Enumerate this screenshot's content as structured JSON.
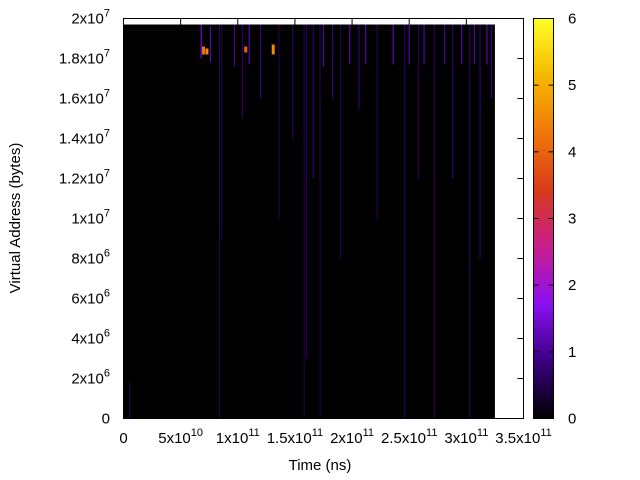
{
  "chart_data": {
    "type": "heatmap",
    "xlabel": "Time (ns)",
    "ylabel": "Virtual Address (bytes)",
    "xlim": [
      0,
      350000000000
    ],
    "ylim": [
      0,
      20000000
    ],
    "x_ticks": [
      {
        "value": 0,
        "base": "0",
        "exp": ""
      },
      {
        "value": 50000000000,
        "base": "5x10",
        "exp": "10"
      },
      {
        "value": 100000000000,
        "base": "1x10",
        "exp": "11"
      },
      {
        "value": 150000000000,
        "base": "1.5x10",
        "exp": "11"
      },
      {
        "value": 200000000000,
        "base": "2x10",
        "exp": "11"
      },
      {
        "value": 250000000000,
        "base": "2.5x10",
        "exp": "11"
      },
      {
        "value": 300000000000,
        "base": "3x10",
        "exp": "11"
      },
      {
        "value": 350000000000,
        "base": "3.5x10",
        "exp": "11"
      }
    ],
    "y_ticks": [
      {
        "value": 0,
        "base": "0",
        "exp": ""
      },
      {
        "value": 2000000,
        "base": "2x10",
        "exp": "6"
      },
      {
        "value": 4000000,
        "base": "4x10",
        "exp": "6"
      },
      {
        "value": 6000000,
        "base": "6x10",
        "exp": "6"
      },
      {
        "value": 8000000,
        "base": "8x10",
        "exp": "6"
      },
      {
        "value": 10000000,
        "base": "1x10",
        "exp": "7"
      },
      {
        "value": 12000000,
        "base": "1.2x10",
        "exp": "7"
      },
      {
        "value": 14000000,
        "base": "1.4x10",
        "exp": "7"
      },
      {
        "value": 16000000,
        "base": "1.6x10",
        "exp": "7"
      },
      {
        "value": 18000000,
        "base": "1.8x10",
        "exp": "7"
      },
      {
        "value": 20000000,
        "base": "2x10",
        "exp": "7"
      }
    ],
    "data_extent": {
      "x": [
        0,
        325000000000
      ],
      "y": [
        0,
        19700000
      ]
    },
    "colorbar": {
      "range": [
        0,
        6
      ],
      "ticks": [
        "0",
        "1",
        "2",
        "3",
        "4",
        "5",
        "6"
      ],
      "palette": [
        "#000000",
        "#3a0080",
        "#8a10f0",
        "#c81e8c",
        "#d83a1a",
        "#f0780a",
        "#f5b800",
        "#ffff28"
      ]
    },
    "background_value": 0,
    "streaks": [
      {
        "x": 5500000000,
        "y0": 0,
        "y1": 1800000,
        "v": 0.6
      },
      {
        "x": 68000000000,
        "y0": 18000000,
        "y1": 19700000,
        "v": 1.5
      },
      {
        "x": 70000000000,
        "y0": 18200000,
        "y1": 18600000,
        "v": 4.2
      },
      {
        "x": 73000000000,
        "y0": 18200000,
        "y1": 18500000,
        "v": 4.5
      },
      {
        "x": 76000000000,
        "y0": 17800000,
        "y1": 19600000,
        "v": 1.2
      },
      {
        "x": 84000000000,
        "y0": 0,
        "y1": 19700000,
        "v": 0.5
      },
      {
        "x": 86000000000,
        "y0": 9000000,
        "y1": 19700000,
        "v": 0.5
      },
      {
        "x": 97000000000,
        "y0": 17600000,
        "y1": 19700000,
        "v": 1.0
      },
      {
        "x": 104000000000,
        "y0": 15000000,
        "y1": 19700000,
        "v": 0.7
      },
      {
        "x": 107000000000,
        "y0": 18300000,
        "y1": 18600000,
        "v": 4.0
      },
      {
        "x": 110000000000,
        "y0": 17700000,
        "y1": 19700000,
        "v": 1.2
      },
      {
        "x": 120000000000,
        "y0": 16000000,
        "y1": 19700000,
        "v": 0.8
      },
      {
        "x": 131000000000,
        "y0": 18200000,
        "y1": 18700000,
        "v": 4.5
      },
      {
        "x": 136000000000,
        "y0": 10000000,
        "y1": 19700000,
        "v": 0.5
      },
      {
        "x": 148000000000,
        "y0": 14000000,
        "y1": 19700000,
        "v": 0.6
      },
      {
        "x": 158000000000,
        "y0": 0,
        "y1": 19700000,
        "v": 0.5
      },
      {
        "x": 160000000000,
        "y0": 3000000,
        "y1": 19700000,
        "v": 0.6
      },
      {
        "x": 166000000000,
        "y0": 12000000,
        "y1": 19700000,
        "v": 0.7
      },
      {
        "x": 172000000000,
        "y0": 0,
        "y1": 19700000,
        "v": 0.5
      },
      {
        "x": 175000000000,
        "y0": 17600000,
        "y1": 19700000,
        "v": 1.1
      },
      {
        "x": 183000000000,
        "y0": 16000000,
        "y1": 19700000,
        "v": 0.8
      },
      {
        "x": 190000000000,
        "y0": 8000000,
        "y1": 19700000,
        "v": 0.5
      },
      {
        "x": 198000000000,
        "y0": 17700000,
        "y1": 19700000,
        "v": 1.2
      },
      {
        "x": 206000000000,
        "y0": 15500000,
        "y1": 19700000,
        "v": 0.8
      },
      {
        "x": 212000000000,
        "y0": 17700000,
        "y1": 19700000,
        "v": 1.2
      },
      {
        "x": 222000000000,
        "y0": 10000000,
        "y1": 19700000,
        "v": 0.6
      },
      {
        "x": 236000000000,
        "y0": 17700000,
        "y1": 19700000,
        "v": 1.3
      },
      {
        "x": 246000000000,
        "y0": 0,
        "y1": 19700000,
        "v": 0.6
      },
      {
        "x": 250000000000,
        "y0": 17700000,
        "y1": 19700000,
        "v": 1.2
      },
      {
        "x": 258000000000,
        "y0": 12000000,
        "y1": 19700000,
        "v": 0.6
      },
      {
        "x": 263000000000,
        "y0": 17700000,
        "y1": 19700000,
        "v": 1.1
      },
      {
        "x": 272000000000,
        "y0": 0,
        "y1": 19700000,
        "v": 0.6
      },
      {
        "x": 281000000000,
        "y0": 17700000,
        "y1": 19700000,
        "v": 1.0
      },
      {
        "x": 288000000000,
        "y0": 12000000,
        "y1": 19700000,
        "v": 0.7
      },
      {
        "x": 296000000000,
        "y0": 17700000,
        "y1": 19700000,
        "v": 1.2
      },
      {
        "x": 303000000000,
        "y0": 0,
        "y1": 19700000,
        "v": 0.6
      },
      {
        "x": 307000000000,
        "y0": 17700000,
        "y1": 19700000,
        "v": 1.1
      },
      {
        "x": 312000000000,
        "y0": 8000000,
        "y1": 19700000,
        "v": 0.7
      },
      {
        "x": 318000000000,
        "y0": 17700000,
        "y1": 19700000,
        "v": 1.2
      },
      {
        "x": 322000000000,
        "y0": 16000000,
        "y1": 19700000,
        "v": 0.8
      }
    ]
  }
}
